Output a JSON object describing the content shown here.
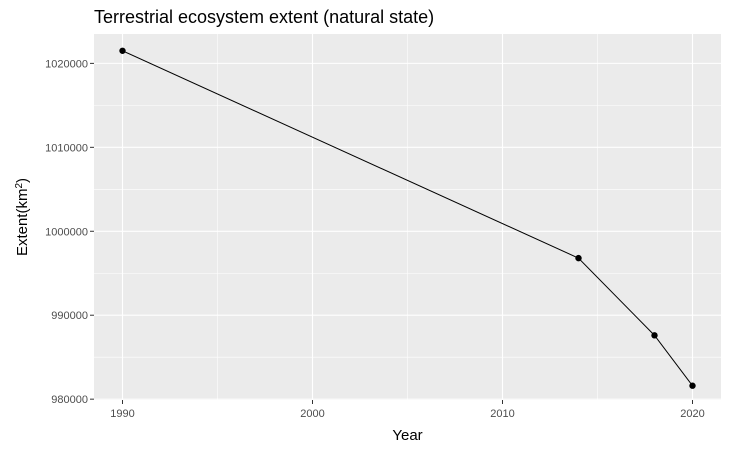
{
  "chart_data": {
    "type": "line",
    "title": "Terrestrial ecosystem extent (natural state)",
    "xlabel": "Year",
    "ylabel_main": "Extent",
    "ylabel_unit_base": "(km",
    "ylabel_unit_sup": "2",
    "ylabel_unit_close": ")",
    "x": [
      1990,
      2014,
      2018,
      2020
    ],
    "values": [
      1021500,
      996800,
      987600,
      981600
    ],
    "xlim": [
      1988.5,
      2021.5
    ],
    "ylim": [
      979900,
      1023500
    ],
    "x_ticks": [
      1990,
      2000,
      2010,
      2020
    ],
    "x_minor_ticks": [
      1995,
      2005,
      2015
    ],
    "y_ticks": [
      980000,
      990000,
      1000000,
      1010000,
      1020000
    ],
    "x_tick_labels": [
      "1990",
      "2000",
      "2010",
      "2020"
    ],
    "y_tick_labels": [
      "980000",
      "990000",
      "1000000",
      "1010000",
      "1020000"
    ],
    "grid": true,
    "legend": "none",
    "colors": {
      "panel_background": "#ebebeb",
      "grid": "#ffffff",
      "line": "#000000",
      "points": "#000000",
      "tick_text": "#4d4d4d"
    }
  }
}
